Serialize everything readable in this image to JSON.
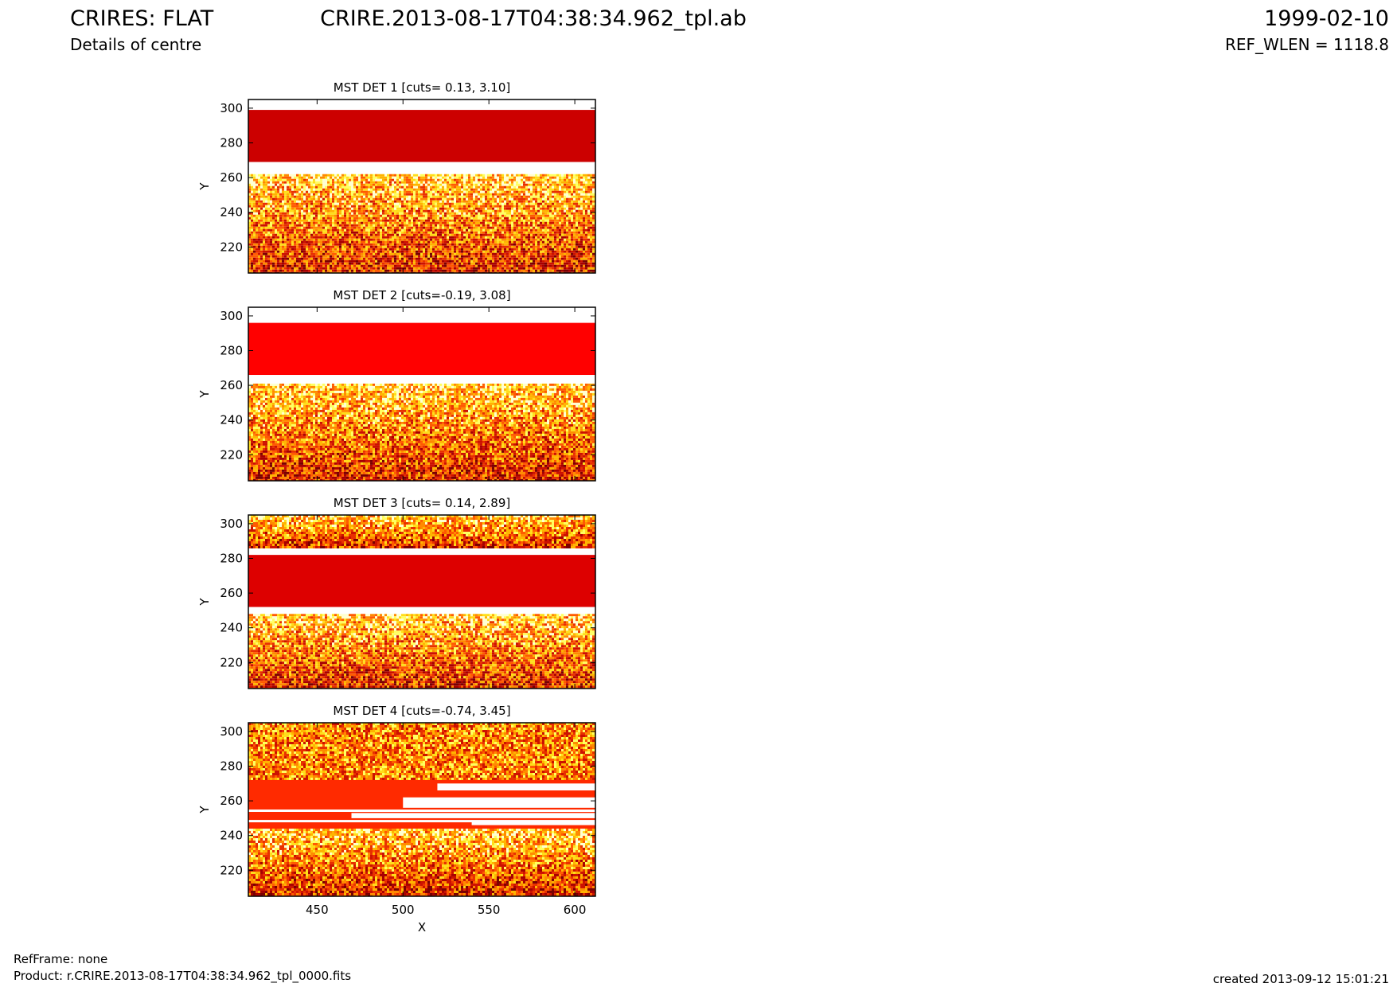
{
  "header": {
    "title": "CRIRES: FLAT",
    "subtitle": "Details of centre",
    "filename": "CRIRE.2013-08-17T04:38:34.962_tpl.ab",
    "date": "1999-02-10",
    "ref_wlen": "REF_WLEN = 1118.8"
  },
  "footer": {
    "refframe": "RefFrame: none",
    "product": "Product: r.CRIRE.2013-08-17T04:38:34.962_tpl_0000.fits",
    "created": "created 2013-09-12 15:01:21"
  },
  "colors": {
    "det1_band": "#cc0000",
    "det2_band": "#ff0000",
    "det3_band": "#dd0000",
    "det4_band": "#ff2a00",
    "noise_palette": [
      "#7a0000",
      "#a80000",
      "#cc1100",
      "#e83000",
      "#ff5a00",
      "#ff8a00",
      "#ffb400",
      "#ffde1a",
      "#ffff60",
      "#ffffd0"
    ]
  },
  "chart_data": [
    {
      "type": "heatmap",
      "title": "MST DET 1 [cuts= 0.13, 3.10]",
      "ylabel": "Y",
      "xlim": [
        410,
        612
      ],
      "ylim": [
        205,
        305
      ],
      "yticks": [
        220,
        240,
        260,
        280,
        300
      ],
      "band_y": [
        269,
        299
      ],
      "white_gap_y": [
        262,
        269
      ],
      "noise_y": [
        205,
        262
      ]
    },
    {
      "type": "heatmap",
      "title": "MST DET 2 [cuts=-0.19, 3.08]",
      "ylabel": "Y",
      "xlim": [
        410,
        612
      ],
      "ylim": [
        205,
        305
      ],
      "yticks": [
        220,
        240,
        260,
        280,
        300
      ],
      "band_y": [
        266,
        296
      ],
      "white_gap_y": [
        261,
        266
      ],
      "noise_y": [
        205,
        261
      ]
    },
    {
      "type": "heatmap",
      "title": "MST DET 3 [cuts= 0.14, 2.89]",
      "ylabel": "Y",
      "xlim": [
        410,
        612
      ],
      "ylim": [
        205,
        305
      ],
      "yticks": [
        220,
        240,
        260,
        280,
        300
      ],
      "band_y": [
        252,
        282
      ],
      "white_gap_y": [
        248,
        252
      ],
      "noise_y": [
        205,
        248
      ],
      "top_noise_y": [
        286,
        305
      ]
    },
    {
      "type": "heatmap",
      "title": "MST DET 4 [cuts=-0.74, 3.45]",
      "ylabel": "Y",
      "xlabel": "X",
      "xlim": [
        410,
        612
      ],
      "ylim": [
        205,
        305
      ],
      "xticks": [
        450,
        500,
        550,
        600
      ],
      "yticks": [
        220,
        240,
        260,
        280,
        300
      ],
      "band_y": [
        244,
        272
      ],
      "noise_y": [
        205,
        244
      ],
      "top_noise_y": [
        272,
        305
      ]
    }
  ]
}
